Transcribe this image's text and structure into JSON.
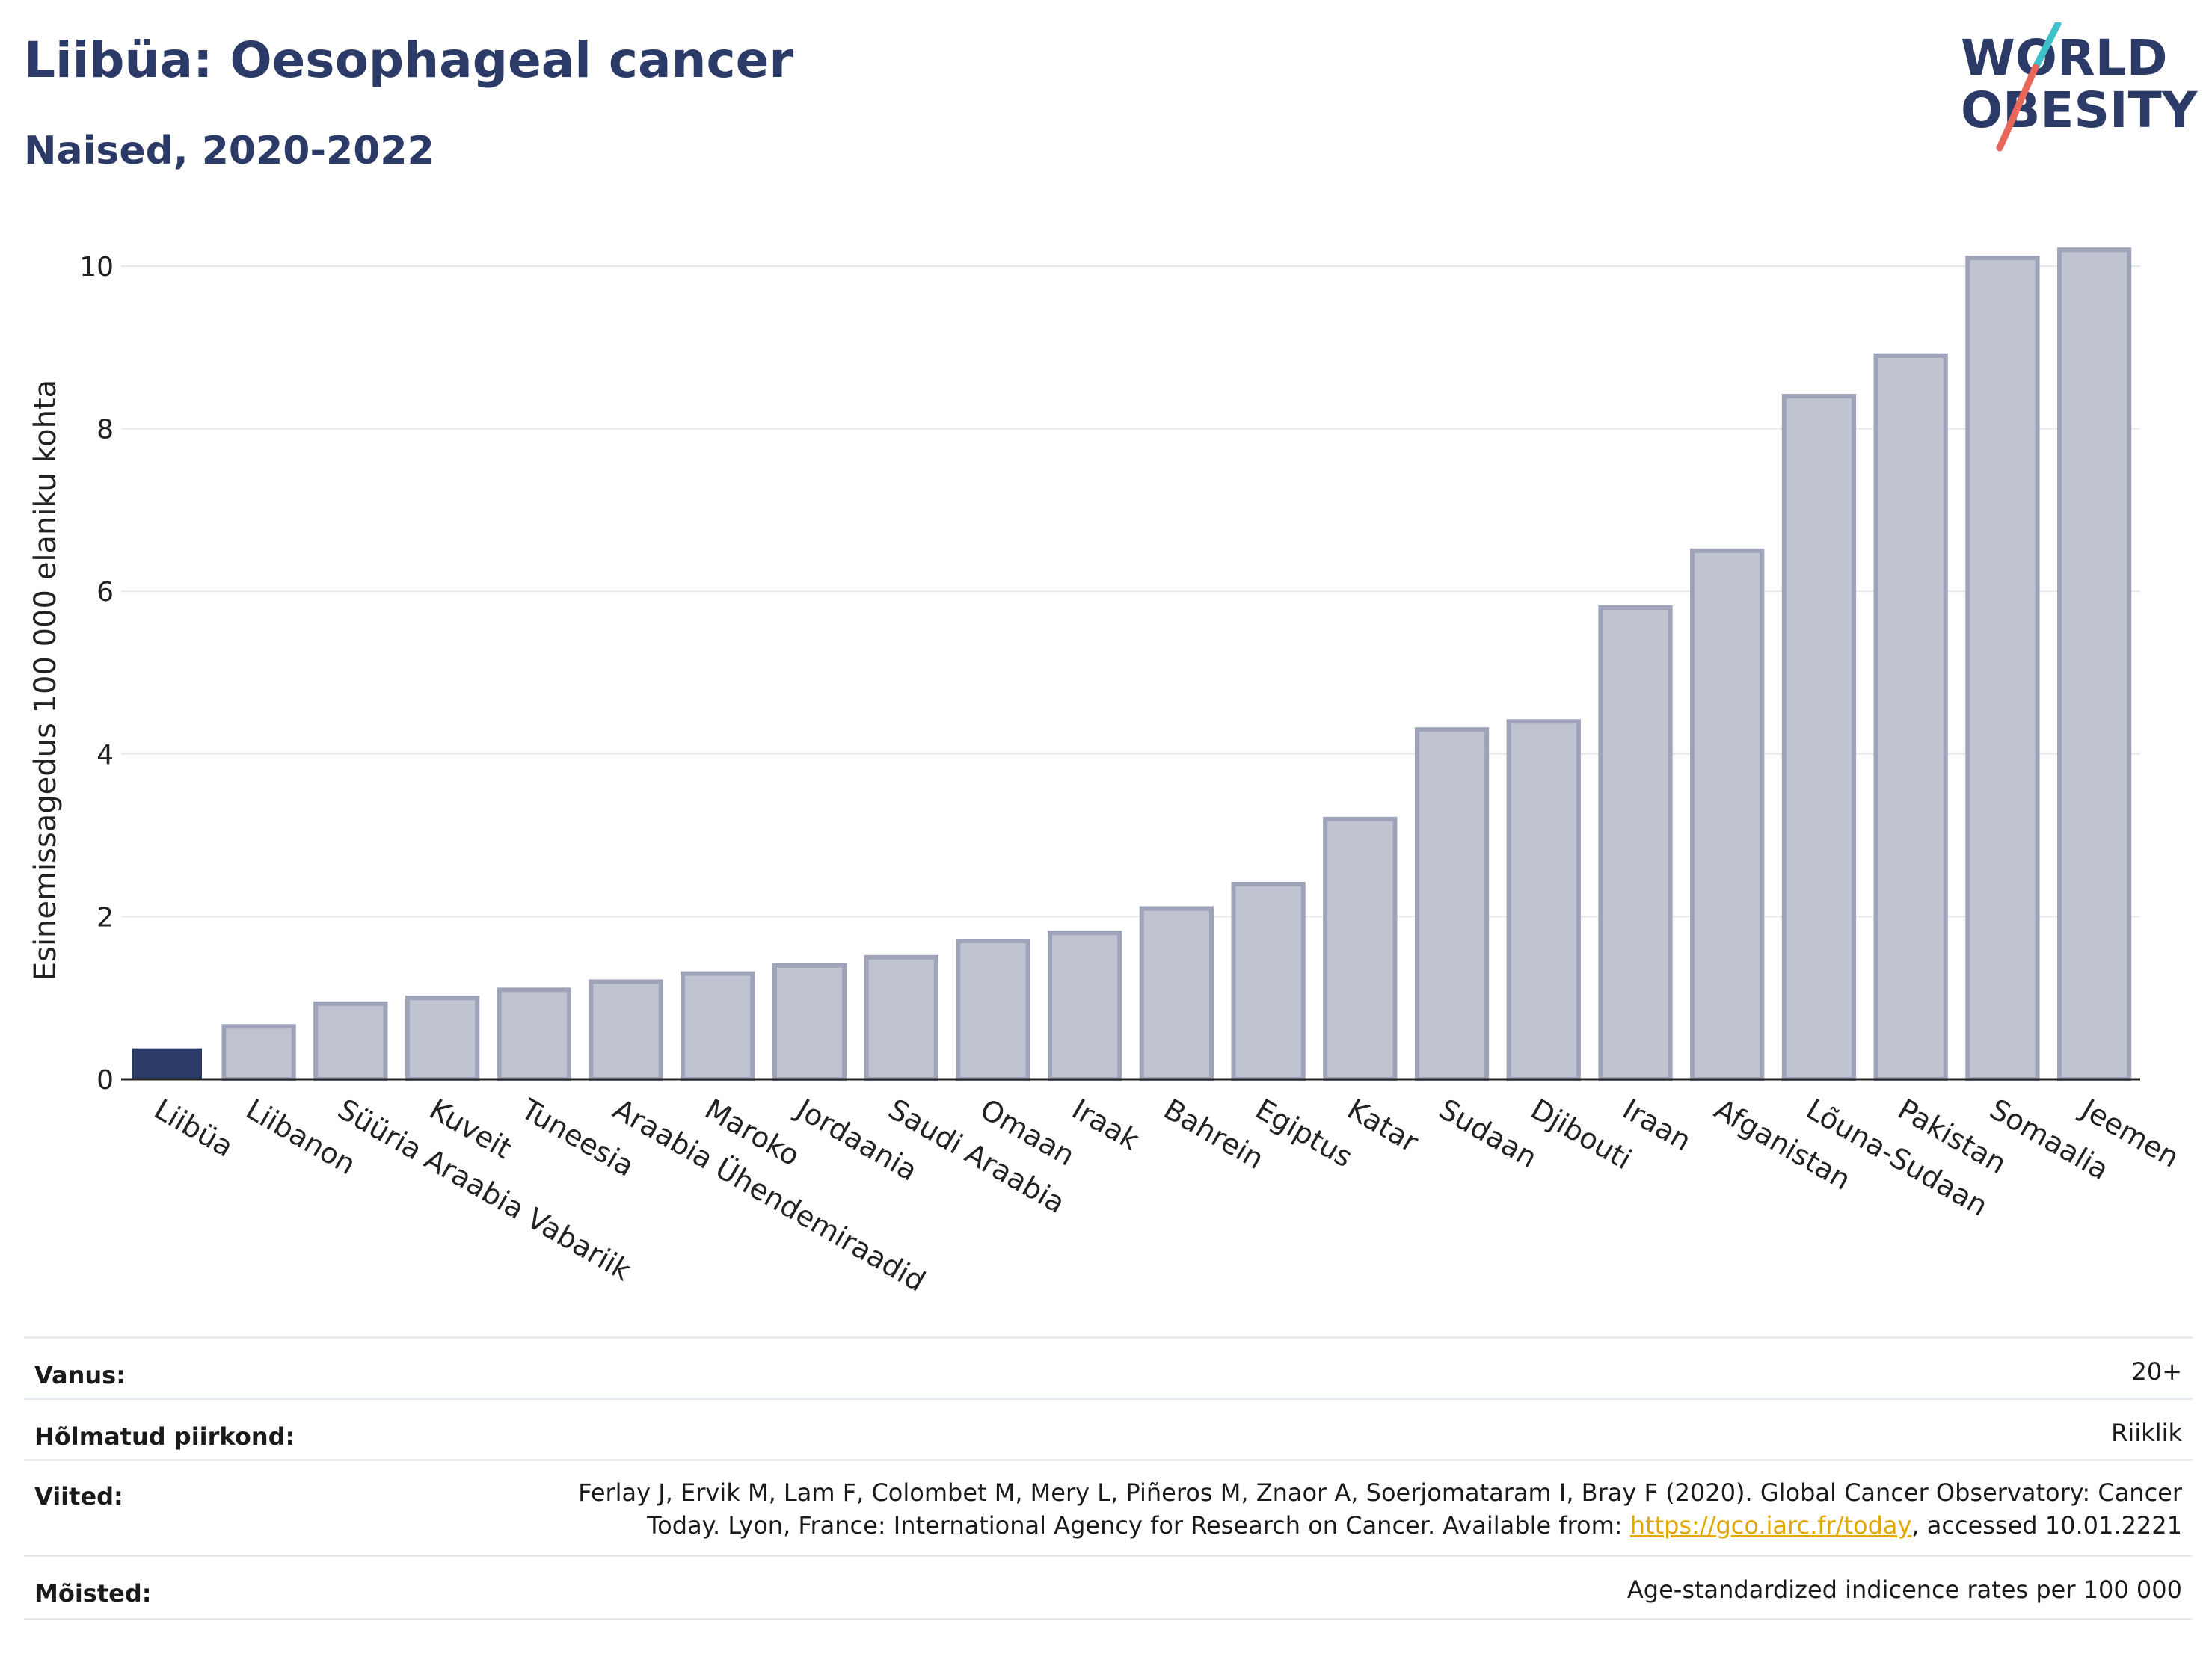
{
  "header": {
    "title": "Liibüa: Oesophageal cancer",
    "subtitle": "Naised, 2020-2022"
  },
  "logo": {
    "line1": "WORLD",
    "line2": "OBESITY",
    "colors": {
      "text": "#2b3a67",
      "accent_teal": "#3ec1c9",
      "accent_red": "#e8675a"
    }
  },
  "chart_data": {
    "type": "bar",
    "ylabel": "Esinemissagedus 100 000 elaniku kohta",
    "ylim": [
      0,
      10.6
    ],
    "yticks": [
      0,
      2,
      4,
      6,
      8,
      10
    ],
    "grid": true,
    "categories": [
      "Liibüa",
      "Liibanon",
      "Süüria Araabia Vabariik",
      "Kuveit",
      "Tuneesia",
      "Araabia Ühendemiraadid",
      "Maroko",
      "Jordaania",
      "Saudi Araabia",
      "Omaan",
      "Iraak",
      "Bahrein",
      "Egiptus",
      "Katar",
      "Sudaan",
      "Djibouti",
      "Iraan",
      "Afganistan",
      "Lõuna-Sudaan",
      "Pakistan",
      "Somaalia",
      "Jeemen"
    ],
    "values": [
      0.38,
      0.65,
      0.93,
      1.0,
      1.1,
      1.2,
      1.3,
      1.4,
      1.5,
      1.7,
      1.8,
      2.1,
      2.4,
      3.2,
      4.3,
      4.4,
      5.8,
      6.5,
      8.4,
      8.9,
      10.1,
      10.2
    ],
    "highlight_index": 0,
    "colors": {
      "highlight": "#2b3a67",
      "bar_fill": "#c0c3d0",
      "bar_stroke": "#9ea3ba",
      "grid": "#e6e9ee",
      "axis": "#222222"
    }
  },
  "meta": {
    "age_label": "Vanus:",
    "age_value": "20+",
    "coverage_label": "Hõlmatud piirkond:",
    "coverage_value": "Riiklik",
    "refs_label": "Viited:",
    "refs_line1": "Ferlay J, Ervik M, Lam F, Colombet M, Mery L, Piñeros M, Znaor A, Soerjomataram I, Bray F (2020). Global Cancer Observatory: Cancer",
    "refs_line2_pre": "Today. Lyon, France: International Agency for Research on Cancer. Available from: ",
    "refs_link": "https://gco.iarc.fr/today",
    "refs_line2_post": ", accessed 10.01.2221",
    "defs_label": "Mõisted:",
    "defs_value": "Age-standardized indicence rates per 100 000"
  }
}
